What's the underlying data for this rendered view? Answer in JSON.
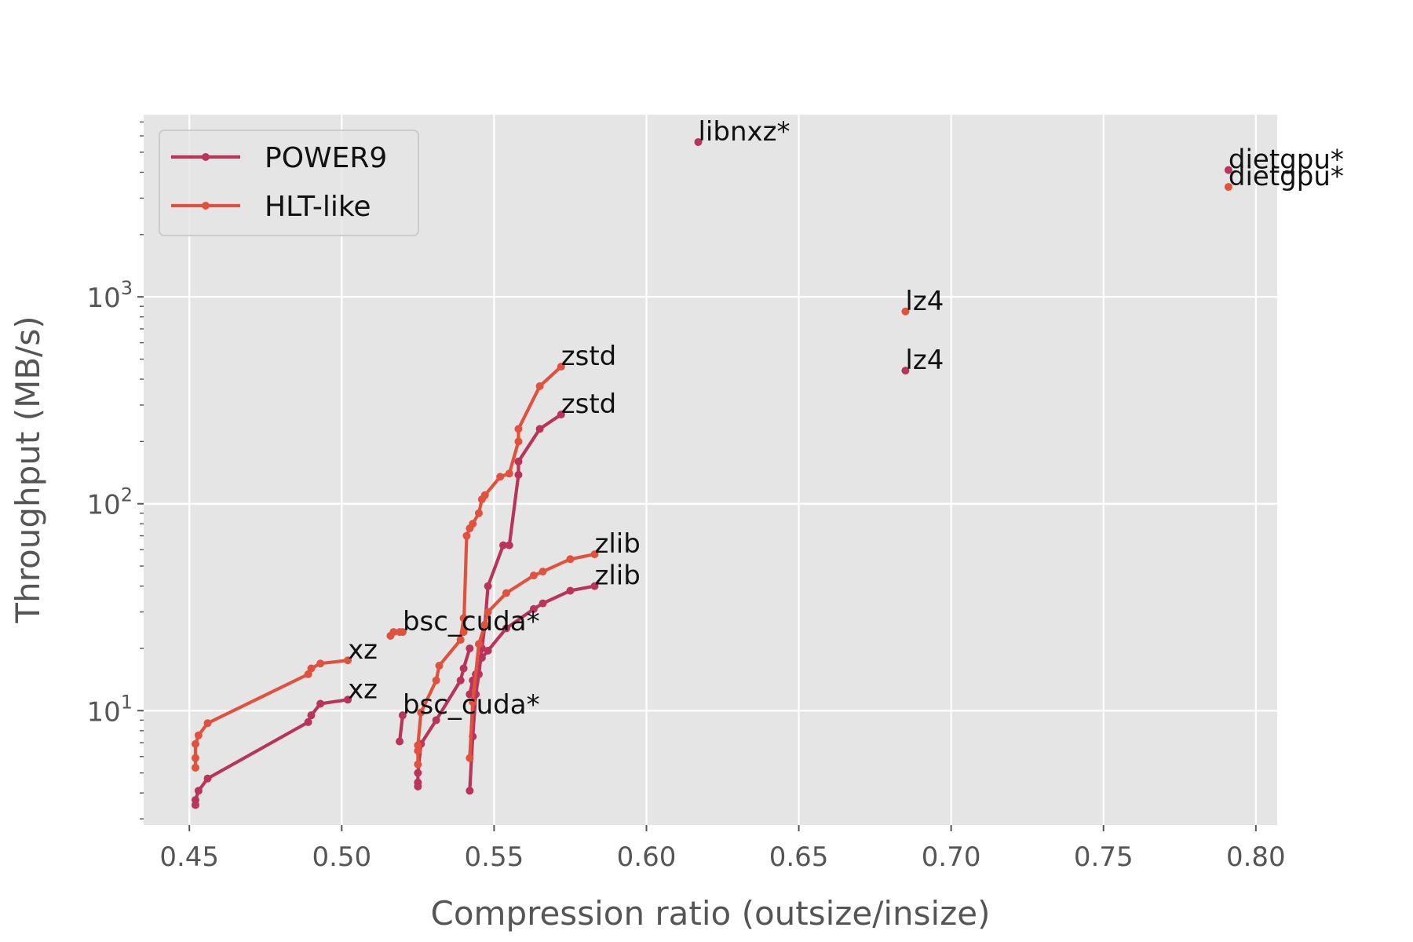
{
  "chart_data": {
    "type": "line",
    "xlabel": "Compression ratio (outsize/insize)",
    "ylabel": "Throughput (MB/s)",
    "xlim": [
      0.435,
      0.807
    ],
    "ylim": [
      2.8,
      7600
    ],
    "yscale": "log",
    "x_ticks": [
      "0.45",
      "0.50",
      "0.55",
      "0.60",
      "0.65",
      "0.70",
      "0.75",
      "0.80"
    ],
    "y_ticks": [
      {
        "base": "10",
        "exp": "1",
        "value": 10
      },
      {
        "base": "10",
        "exp": "2",
        "value": 100
      },
      {
        "base": "10",
        "exp": "3",
        "value": 1000
      }
    ],
    "grid": true,
    "legend_position": "top-left",
    "series": [
      {
        "name": "POWER9",
        "color": "#b9345a",
        "groups": [
          {
            "x": [
              0.452,
              0.452,
              0.453,
              0.456,
              0.489,
              0.49,
              0.493,
              0.502
            ],
            "y": [
              3.5,
              3.7,
              4.1,
              4.7,
              8.8,
              9.5,
              10.8,
              11.3
            ]
          },
          {
            "x": [
              0.519,
              0.52
            ],
            "y": [
              7.1,
              9.5
            ]
          },
          {
            "x": [
              0.525,
              0.525,
              0.525,
              0.526,
              0.531,
              0.539,
              0.54,
              0.542
            ],
            "y": [
              4.3,
              4.5,
              5.0,
              6.9,
              9.0,
              14.0,
              16.0,
              20.0
            ]
          },
          {
            "x": [
              0.542,
              0.543,
              0.544,
              0.545,
              0.546,
              0.547,
              0.548,
              0.553,
              0.555,
              0.558,
              0.558,
              0.565,
              0.572
            ],
            "y": [
              4.1,
              7.5,
              12.0,
              15.0,
              20.0,
              26.0,
              40.0,
              63.0,
              63.0,
              138.0,
              160.0,
              230.0,
              270.0
            ]
          },
          {
            "x": [
              0.542,
              0.543,
              0.544,
              0.546,
              0.548,
              0.554,
              0.563,
              0.566,
              0.575,
              0.583
            ],
            "y": [
              12.0,
              14.0,
              15.0,
              18.0,
              19.5,
              25.0,
              31.0,
              33.0,
              38.0,
              40.0
            ]
          },
          {
            "x": [
              0.617
            ],
            "y": [
              5600
            ]
          },
          {
            "x": [
              0.685
            ],
            "y": [
              440
            ]
          },
          {
            "x": [
              0.791
            ],
            "y": [
              4100
            ]
          }
        ]
      },
      {
        "name": "HLT-like",
        "color": "#e0523e",
        "groups": [
          {
            "x": [
              0.452,
              0.452,
              0.452,
              0.453,
              0.456,
              0.489,
              0.49,
              0.493,
              0.502
            ],
            "y": [
              5.3,
              5.9,
              6.9,
              7.6,
              8.7,
              15.0,
              16.0,
              16.9,
              17.5
            ]
          },
          {
            "x": [
              0.516,
              0.517,
              0.519,
              0.52
            ],
            "y": [
              23.0,
              24.0,
              24.0,
              24.0
            ]
          },
          {
            "x": [
              0.525,
              0.525,
              0.525,
              0.526,
              0.531,
              0.532,
              0.539,
              0.54
            ],
            "y": [
              5.5,
              6.4,
              6.8,
              9.8,
              14.0,
              16.5,
              22.0,
              28.0
            ]
          },
          {
            "x": [
              0.54,
              0.541,
              0.542,
              0.543,
              0.545,
              0.546,
              0.547,
              0.552,
              0.555,
              0.558,
              0.558,
              0.565,
              0.572
            ],
            "y": [
              24.0,
              70.0,
              76.0,
              80.0,
              90.0,
              105.0,
              110.0,
              135.0,
              140.0,
              200.0,
              230.0,
              370.0,
              460.0
            ]
          },
          {
            "x": [
              0.542,
              0.543,
              0.545,
              0.547,
              0.548,
              0.554,
              0.563,
              0.566,
              0.575,
              0.583
            ],
            "y": [
              5.9,
              11.0,
              21.0,
              26.0,
              30.0,
              37.0,
              45.0,
              47.0,
              54.0,
              57.0
            ]
          },
          {
            "x": [
              0.685
            ],
            "y": [
              850
            ]
          },
          {
            "x": [
              0.791
            ],
            "y": [
              3400
            ]
          }
        ]
      }
    ],
    "annotations": [
      {
        "text": "libnxz*",
        "x": 0.617,
        "y": 5600
      },
      {
        "text": "dietgpu*",
        "x": 0.791,
        "y": 4100
      },
      {
        "text": "dietgpu*",
        "x": 0.791,
        "y": 3400
      },
      {
        "text": "lz4",
        "x": 0.685,
        "y": 850
      },
      {
        "text": "lz4",
        "x": 0.685,
        "y": 440
      },
      {
        "text": "zstd",
        "x": 0.572,
        "y": 460
      },
      {
        "text": "zstd",
        "x": 0.572,
        "y": 270
      },
      {
        "text": "zlib",
        "x": 0.583,
        "y": 57
      },
      {
        "text": "zlib",
        "x": 0.583,
        "y": 40
      },
      {
        "text": "bsc_cuda*",
        "x": 0.52,
        "y": 24
      },
      {
        "text": "bsc_cuda*",
        "x": 0.52,
        "y": 9.5
      },
      {
        "text": "xz",
        "x": 0.502,
        "y": 17.5
      },
      {
        "text": "xz",
        "x": 0.502,
        "y": 11.3
      }
    ]
  }
}
